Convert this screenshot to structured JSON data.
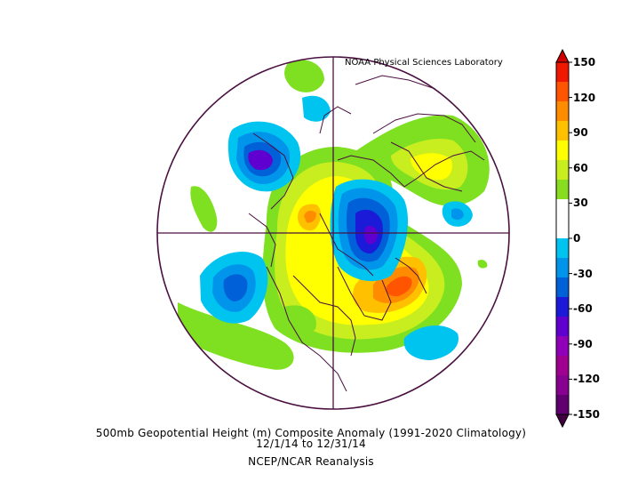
{
  "credit": "NOAA Physical Sciences Laboratory",
  "caption": {
    "title": "500mb Geopotential Height (m) Composite Anomaly (1991-2020 Climatology)",
    "dates": "12/1/14  to 12/31/14",
    "source": "NCEP/NCAR Reanalysis"
  },
  "colorbar": {
    "labels": [
      "150",
      "120",
      "90",
      "60",
      "30",
      "0",
      "-30",
      "-60",
      "-90",
      "-120",
      "-150"
    ],
    "colors": [
      "#f01800",
      "#ff5500",
      "#ff8c00",
      "#ffc000",
      "#ffff00",
      "#c8ee20",
      "#88dd20",
      "#ffffff",
      "#ffffff",
      "#00c4f0",
      "#0095ea",
      "#0060d8",
      "#1a1ad8",
      "#6000d0",
      "#9000b8",
      "#a00090",
      "#880090",
      "#600070"
    ]
  }
}
